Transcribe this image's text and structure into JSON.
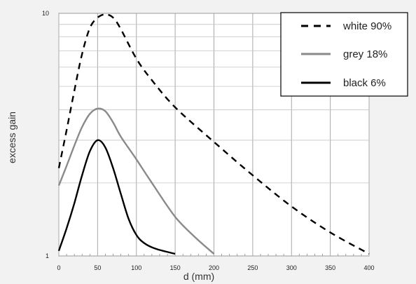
{
  "chart_data": {
    "type": "line",
    "xlabel": "d (mm)",
    "ylabel": "excess gain",
    "xlim": [
      0,
      400
    ],
    "ylim": [
      1,
      10
    ],
    "yscale": "log",
    "grid": true,
    "legend_position": "top-right",
    "x_ticks": [
      0,
      50,
      100,
      150,
      200,
      250,
      300,
      350,
      400
    ],
    "x_tick_labels": [
      "0",
      "50",
      "100",
      "150",
      "200",
      "250",
      "300",
      "350",
      "400"
    ],
    "y_ticks": [
      1,
      10
    ],
    "y_tick_labels": [
      "1",
      "10"
    ],
    "series": [
      {
        "name": "white 90%",
        "style": "dashed",
        "color": "#000000",
        "points": [
          [
            0,
            2.3
          ],
          [
            10,
            3.3
          ],
          [
            20,
            4.8
          ],
          [
            30,
            6.8
          ],
          [
            40,
            8.7
          ],
          [
            50,
            9.6
          ],
          [
            60,
            9.9
          ],
          [
            70,
            9.6
          ],
          [
            80,
            8.6
          ],
          [
            100,
            6.5
          ],
          [
            120,
            5.3
          ],
          [
            150,
            4.1
          ],
          [
            200,
            2.95
          ],
          [
            250,
            2.15
          ],
          [
            300,
            1.6
          ],
          [
            350,
            1.25
          ],
          [
            400,
            1.02
          ]
        ]
      },
      {
        "name": "grey 18%",
        "style": "solid",
        "color": "#8a8a8a",
        "points": [
          [
            0,
            1.95
          ],
          [
            10,
            2.35
          ],
          [
            20,
            2.85
          ],
          [
            30,
            3.4
          ],
          [
            40,
            3.85
          ],
          [
            50,
            4.05
          ],
          [
            60,
            3.95
          ],
          [
            70,
            3.55
          ],
          [
            80,
            3.1
          ],
          [
            100,
            2.5
          ],
          [
            120,
            2.0
          ],
          [
            150,
            1.45
          ],
          [
            175,
            1.2
          ],
          [
            200,
            1.02
          ]
        ]
      },
      {
        "name": "black 6%",
        "style": "solid",
        "color": "#000000",
        "points": [
          [
            0,
            1.05
          ],
          [
            10,
            1.3
          ],
          [
            20,
            1.65
          ],
          [
            30,
            2.15
          ],
          [
            40,
            2.7
          ],
          [
            50,
            3.0
          ],
          [
            60,
            2.8
          ],
          [
            70,
            2.3
          ],
          [
            80,
            1.8
          ],
          [
            90,
            1.42
          ],
          [
            100,
            1.22
          ],
          [
            110,
            1.13
          ],
          [
            125,
            1.07
          ],
          [
            150,
            1.02
          ]
        ]
      }
    ]
  }
}
